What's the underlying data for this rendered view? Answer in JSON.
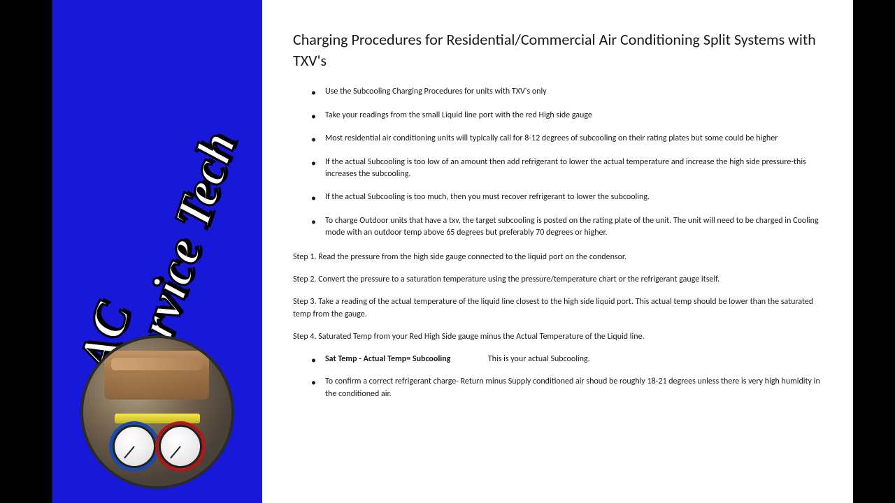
{
  "sidebar": {
    "logo_line1": "AC",
    "logo_line2": "Service Tech",
    "bg_color": "#1818d8"
  },
  "document": {
    "title": "Charging Procedures for Residential/Commercial Air Conditioning Split Systems with TXV's",
    "bullets": [
      "Use the Subcooling Charging Procedures for units with TXV's only",
      "Take your readings from the small Liquid line port with the red High side gauge",
      "Most residential air conditioning units will typically call for 8-12 degrees of subcooling on their rating plates but some could be higher",
      "If the actual Subcooling is too low of an amount then add refrigerant to lower the actual temperature and increase the high side pressure-this increases the subcooling.",
      "If the actual Subcooling is too much, then you must recover refrigerant to lower the subcooling.",
      "To charge Outdoor units that have a txv, the target subcooling is posted on the rating plate of the unit. The unit will need to be charged in Cooling mode with an outdoor temp above 65 degrees but preferably 70 degrees or higher."
    ],
    "steps": [
      "Step 1. Read the pressure from the high side gauge connected to the liquid port on the condensor.",
      "Step 2. Convert the pressure to a saturation temperature using the pressure/temperature chart or the refrigerant gauge itself.",
      "Step 3. Take a reading of the actual temperature of the liquid line closest to the high side liquid port. This actual temp should be lower than the saturated temp from the gauge.",
      "Step 4. Saturated Temp from your Red High Side gauge minus the Actual Temperature of the Liquid line."
    ],
    "formula_bold": "Sat Temp - Actual Temp= Subcooling",
    "formula_rest": "This is your actual Subcooling.",
    "confirm": "To confirm a correct refrigerant charge- Return minus Supply conditioned air shoud be roughly 18-21 degrees unless there is very high humidity in the conditioned air."
  },
  "style": {
    "page_bg": "#000000",
    "doc_bg": "#ffffff",
    "title_fontsize": 22,
    "body_fontsize": 12,
    "text_color": "#1a1a1a"
  }
}
